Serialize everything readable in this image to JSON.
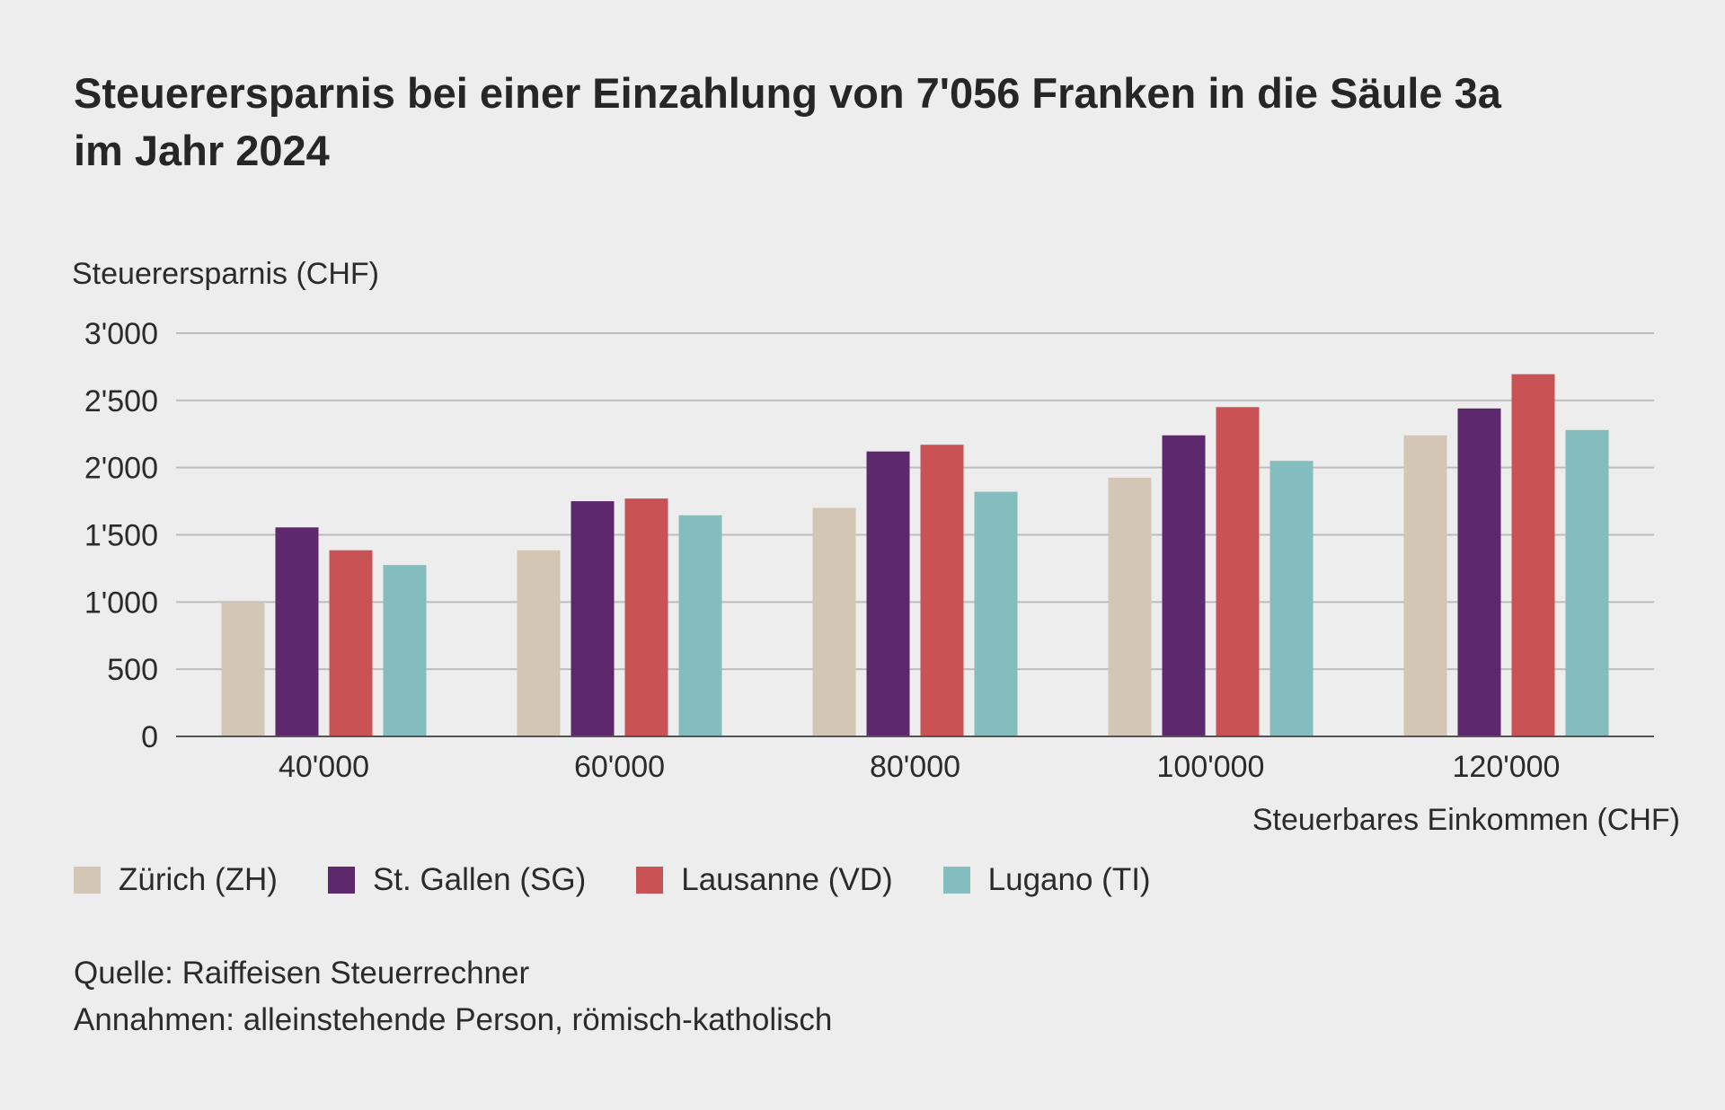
{
  "title_lines": [
    "Steuerersparnis bei einer Einzahlung von 7'056 Franken in die Säule 3a",
    "im Jahr 2024"
  ],
  "chart_data": {
    "type": "bar",
    "title": "Steuerersparnis bei einer Einzahlung von 7'056 Franken in die Säule 3a im Jahr 2024",
    "ylabel": "Steuerersparnis (CHF)",
    "xlabel": "Steuerbares Einkommen (CHF)",
    "ylim": [
      0,
      3000
    ],
    "yticks": [
      0,
      500,
      1000,
      1500,
      2000,
      2500,
      3000
    ],
    "ytick_labels": [
      "0",
      "500",
      "1'000",
      "1'500",
      "2'000",
      "2'500",
      "3'000"
    ],
    "grid": true,
    "legend_position": "bottom-left",
    "categories": [
      "40'000",
      "60'000",
      "80'000",
      "100'000",
      "120'000"
    ],
    "series": [
      {
        "name": "Zürich (ZH)",
        "color": "#d4c6b5",
        "values": [
          1000,
          1385,
          1700,
          1925,
          2240
        ]
      },
      {
        "name": "St. Gallen (SG)",
        "color": "#5e286c",
        "values": [
          1555,
          1750,
          2120,
          2240,
          2440
        ]
      },
      {
        "name": "Lausanne (VD)",
        "color": "#c95255",
        "values": [
          1385,
          1770,
          2170,
          2450,
          2695
        ]
      },
      {
        "name": "Lugano (TI)",
        "color": "#84bdbe",
        "values": [
          1275,
          1645,
          1820,
          2050,
          2280
        ]
      }
    ]
  },
  "footer": {
    "source": "Quelle: Raiffeisen Steuerrechner",
    "assumptions": "Annahmen: alleinstehende Person, römisch-katholisch"
  }
}
